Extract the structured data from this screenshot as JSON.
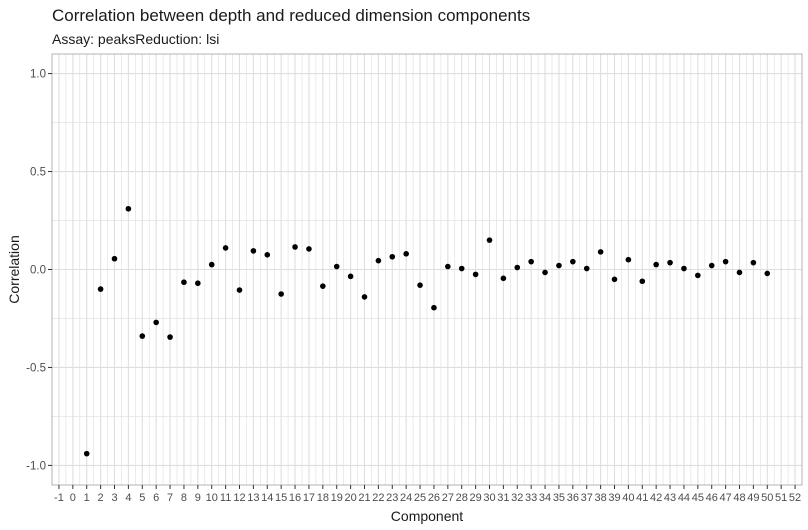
{
  "chart_data": {
    "type": "scatter",
    "title": "Correlation between depth and reduced dimension components",
    "subtitle": "Assay: peaksReduction: lsi",
    "xlabel": "Component",
    "ylabel": "Correlation",
    "xlim": [
      -1,
      52
    ],
    "ylim": [
      -1.0,
      1.0
    ],
    "x_ticks": [
      -1,
      0,
      1,
      2,
      3,
      4,
      5,
      6,
      7,
      8,
      9,
      10,
      11,
      12,
      13,
      14,
      15,
      16,
      17,
      18,
      19,
      20,
      21,
      22,
      23,
      24,
      25,
      26,
      27,
      28,
      29,
      30,
      31,
      32,
      33,
      34,
      35,
      36,
      37,
      38,
      39,
      40,
      41,
      42,
      43,
      44,
      45,
      46,
      47,
      48,
      49,
      50,
      51,
      52
    ],
    "y_ticks": [
      -1.0,
      -0.5,
      0.0,
      0.5,
      1.0
    ],
    "y_tick_labels": [
      "-1.0",
      "-0.5",
      "0.0",
      "0.5",
      "1.0"
    ],
    "grid": true,
    "series": [
      {
        "x": [
          1,
          2,
          3,
          4,
          5,
          6,
          7,
          8,
          9,
          10,
          11,
          12,
          13,
          14,
          15,
          16,
          17,
          18,
          19,
          20,
          21,
          22,
          23,
          24,
          25,
          26,
          27,
          28,
          29,
          30,
          31,
          32,
          33,
          34,
          35,
          36,
          37,
          38,
          39,
          40,
          41,
          42,
          43,
          44,
          45,
          46,
          47,
          48,
          49,
          50
        ],
        "y": [
          -0.94,
          -0.1,
          0.055,
          0.31,
          -0.34,
          -0.27,
          -0.345,
          -0.065,
          -0.07,
          0.025,
          0.11,
          -0.105,
          0.095,
          0.075,
          -0.125,
          0.115,
          0.105,
          -0.085,
          0.015,
          -0.035,
          -0.14,
          0.045,
          0.065,
          0.08,
          -0.08,
          -0.195,
          0.015,
          0.005,
          -0.025,
          0.15,
          -0.045,
          0.01,
          0.04,
          -0.015,
          0.02,
          0.04,
          0.005,
          0.09,
          -0.05,
          0.05,
          -0.06,
          0.025,
          0.035,
          0.005,
          -0.03,
          0.02,
          0.04,
          -0.015,
          0.035,
          -0.02
        ]
      }
    ],
    "colors": {
      "point": "#000000",
      "grid": "#dedede",
      "panel_border": "#b3b3b3",
      "text": "#4d4d4d",
      "title": "#1a1a1a"
    }
  }
}
